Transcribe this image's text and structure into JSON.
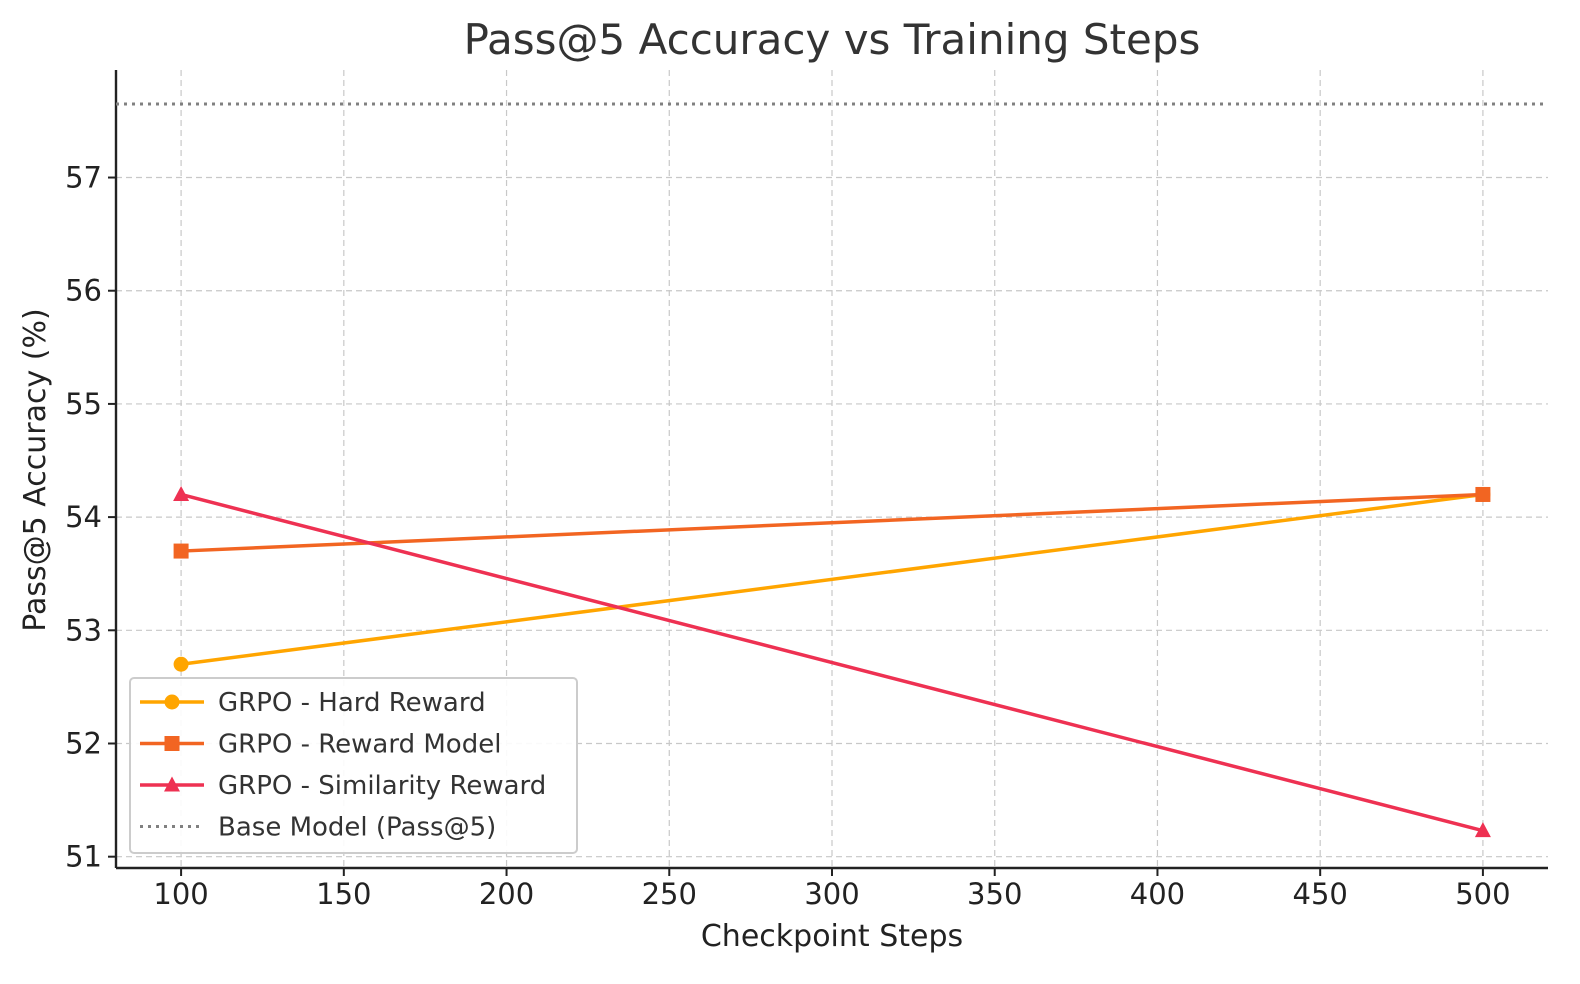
{
  "chart_data": {
    "type": "line",
    "title": "Pass@5 Accuracy vs Training Steps",
    "xlabel": "Checkpoint Steps",
    "ylabel": "Pass@5 Accuracy (%)",
    "xlim": [
      80,
      520
    ],
    "ylim": [
      50.9,
      57.95
    ],
    "xticks": [
      100,
      150,
      200,
      250,
      300,
      350,
      400,
      450,
      500
    ],
    "yticks": [
      51,
      52,
      53,
      54,
      55,
      56,
      57
    ],
    "grid": true,
    "legend_position": "lower-left",
    "x": [
      100,
      500
    ],
    "series": [
      {
        "name": "GRPO - Hard Reward",
        "values": [
          52.7,
          54.2
        ],
        "color": "#FFA500",
        "marker": "circle"
      },
      {
        "name": "GRPO - Reward Model",
        "values": [
          53.7,
          54.2
        ],
        "color": "#F26522",
        "marker": "square"
      },
      {
        "name": "GRPO - Similarity Reward",
        "values": [
          54.2,
          51.23
        ],
        "color": "#EE3152",
        "marker": "triangle"
      }
    ],
    "reference_line": {
      "name": "Base Model (Pass@5)",
      "value": 57.65,
      "color": "#808080",
      "style": "dotted"
    }
  }
}
